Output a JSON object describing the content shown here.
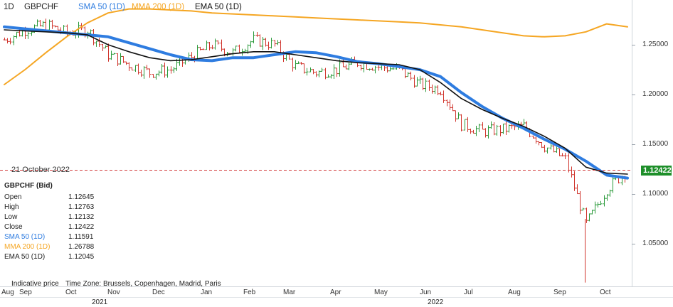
{
  "header": {
    "interval": "1D",
    "symbol": "GBPCHF",
    "legend": [
      {
        "label": "SMA 50  (1D)",
        "color": "#2e7ce0"
      },
      {
        "label": "MMA 200  (1D)",
        "color": "#f5a623"
      },
      {
        "label": "EMA 50  (1D)",
        "color": "#111111"
      }
    ]
  },
  "crosshair": {
    "date": "21 October 2022",
    "price_badge": "1.12422"
  },
  "info_panel": {
    "title": "GBPCHF (Bid)",
    "rows": [
      {
        "label": "Open",
        "value": "1.12645",
        "color": "#222222"
      },
      {
        "label": "High",
        "value": "1.12763",
        "color": "#222222"
      },
      {
        "label": "Low",
        "value": "1.12132",
        "color": "#222222"
      },
      {
        "label": "Close",
        "value": "1.12422",
        "color": "#222222"
      },
      {
        "label": "SMA 50  (1D)",
        "value": "1.11591",
        "color": "#2e7ce0"
      },
      {
        "label": "MMA 200  (1D)",
        "value": "1.26788",
        "color": "#f5a623"
      },
      {
        "label": "EMA 50  (1D)",
        "value": "1.12045",
        "color": "#222222"
      }
    ]
  },
  "footer": {
    "indicative": "Indicative price",
    "timezone": "Time Zone: Brussels, Copenhagen, Madrid, Paris"
  },
  "colors": {
    "up": "#2a9a3a",
    "down": "#d0342c",
    "sma": "#2e7ce0",
    "mma": "#f5a623",
    "ema": "#111111",
    "crosshair": "#d23a3a"
  },
  "chart_data": {
    "type": "line",
    "title": "GBPCHF",
    "ylim": [
      1.0,
      1.29
    ],
    "y_ticks": [
      "1.25000",
      "1.20000",
      "1.15000",
      "1.10000",
      "1.05000"
    ],
    "x_ticks": [
      "Aug",
      "Sep",
      "Oct",
      "Nov",
      "Dec",
      "Jan",
      "Feb",
      "Mar",
      "Apr",
      "May",
      "Jun",
      "Jul",
      "Aug",
      "Sep",
      "Oct"
    ],
    "year_labels": [
      "2021",
      "2022"
    ],
    "x": [
      "2021-08-27",
      "2021-09-10",
      "2021-09-24",
      "2021-10-08",
      "2021-10-22",
      "2021-11-05",
      "2021-11-19",
      "2021-12-03",
      "2021-12-17",
      "2021-12-31",
      "2022-01-14",
      "2022-01-28",
      "2022-02-11",
      "2022-02-25",
      "2022-03-11",
      "2022-03-25",
      "2022-04-08",
      "2022-04-22",
      "2022-05-06",
      "2022-05-20",
      "2022-06-03",
      "2022-06-17",
      "2022-07-01",
      "2022-07-15",
      "2022-07-29",
      "2022-08-12",
      "2022-08-26",
      "2022-09-09",
      "2022-09-23",
      "2022-10-07",
      "2022-10-21"
    ],
    "series": [
      {
        "name": "GBPCHF (Bid)",
        "values": [
          1.255,
          1.265,
          1.27,
          1.262,
          1.265,
          1.24,
          1.23,
          1.222,
          1.225,
          1.238,
          1.25,
          1.242,
          1.255,
          1.25,
          1.228,
          1.222,
          1.225,
          1.232,
          1.228,
          1.225,
          1.21,
          1.205,
          1.17,
          1.163,
          1.165,
          1.168,
          1.148,
          1.135,
          1.07,
          1.105,
          1.124
        ]
      },
      {
        "name": "SMA 50  (1D)",
        "values": [
          1.268,
          1.266,
          1.264,
          1.262,
          1.26,
          1.258,
          1.252,
          1.246,
          1.24,
          1.235,
          1.234,
          1.237,
          1.237,
          1.24,
          1.243,
          1.242,
          1.238,
          1.233,
          1.231,
          1.228,
          1.225,
          1.218,
          1.202,
          1.188,
          1.176,
          1.166,
          1.155,
          1.145,
          1.133,
          1.119,
          1.116
        ]
      },
      {
        "name": "MMA 200  (1D)",
        "values": [
          1.21,
          1.225,
          1.242,
          1.258,
          1.272,
          1.282,
          1.286,
          1.286,
          1.285,
          1.284,
          1.282,
          1.281,
          1.28,
          1.279,
          1.278,
          1.277,
          1.276,
          1.275,
          1.274,
          1.273,
          1.272,
          1.27,
          1.268,
          1.265,
          1.262,
          1.259,
          1.258,
          1.259,
          1.263,
          1.271,
          1.268
        ]
      },
      {
        "name": "EMA 50  (1D)",
        "values": [
          1.265,
          1.264,
          1.263,
          1.262,
          1.26,
          1.25,
          1.243,
          1.237,
          1.234,
          1.235,
          1.238,
          1.241,
          1.243,
          1.243,
          1.24,
          1.237,
          1.234,
          1.232,
          1.231,
          1.23,
          1.225,
          1.212,
          1.196,
          1.185,
          1.176,
          1.168,
          1.158,
          1.146,
          1.127,
          1.121,
          1.12
        ]
      }
    ]
  }
}
